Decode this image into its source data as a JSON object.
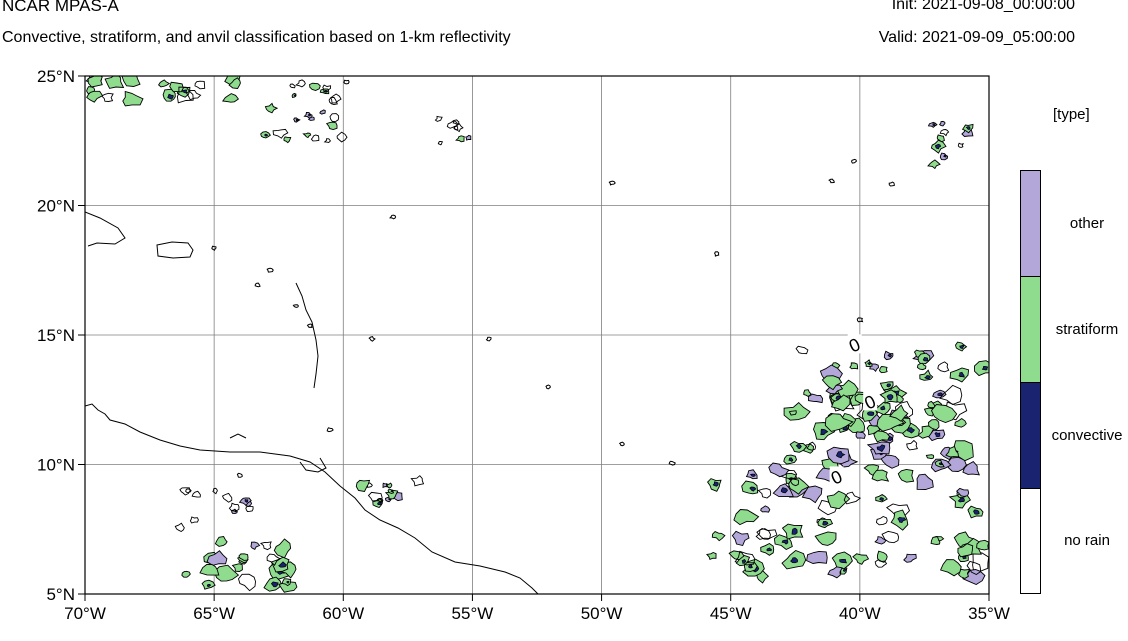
{
  "header": {
    "title": "NCAR MPAS-A",
    "subtitle": "Convective, stratiform, and anvil classification based on 1-km reflectivity",
    "init": "Init: 2021-09-08_00:00:00",
    "valid": "Valid: 2021-09-09_05:00:00"
  },
  "map": {
    "lon_range": [
      -70,
      -35
    ],
    "lat_range": [
      5,
      25
    ],
    "lat_ticks": [
      {
        "value": 25,
        "label": "25°N"
      },
      {
        "value": 20,
        "label": "20°N"
      },
      {
        "value": 15,
        "label": "15°N"
      },
      {
        "value": 10,
        "label": "10°N"
      },
      {
        "value": 5,
        "label": "5°N"
      }
    ],
    "lon_ticks": [
      {
        "value": -70,
        "label": "70°W"
      },
      {
        "value": -65,
        "label": "65°W"
      },
      {
        "value": -60,
        "label": "60°W"
      },
      {
        "value": -55,
        "label": "55°W"
      },
      {
        "value": -50,
        "label": "50°W"
      },
      {
        "value": -45,
        "label": "45°W"
      },
      {
        "value": -40,
        "label": "40°W"
      },
      {
        "value": -35,
        "label": "35°W"
      }
    ],
    "contour_labels": [
      {
        "text": "0",
        "lon": -40.2,
        "lat": 14.6
      },
      {
        "text": "0",
        "lon": -39.6,
        "lat": 12.4
      },
      {
        "text": "0",
        "lon": -40.9,
        "lat": 9.5
      }
    ]
  },
  "legend": {
    "title": "[type]",
    "classes": [
      {
        "label": "other",
        "color": "#b3a6d9"
      },
      {
        "label": "stratiform",
        "color": "#8fdc8f"
      },
      {
        "label": "convective",
        "color": "#1a2370"
      },
      {
        "label": "no rain",
        "color": "#ffffff"
      }
    ]
  },
  "colors": {
    "stratiform": "#8fdc8f",
    "other": "#b3a6d9",
    "convective": "#1a2370",
    "grid": "#7f7f7f"
  }
}
